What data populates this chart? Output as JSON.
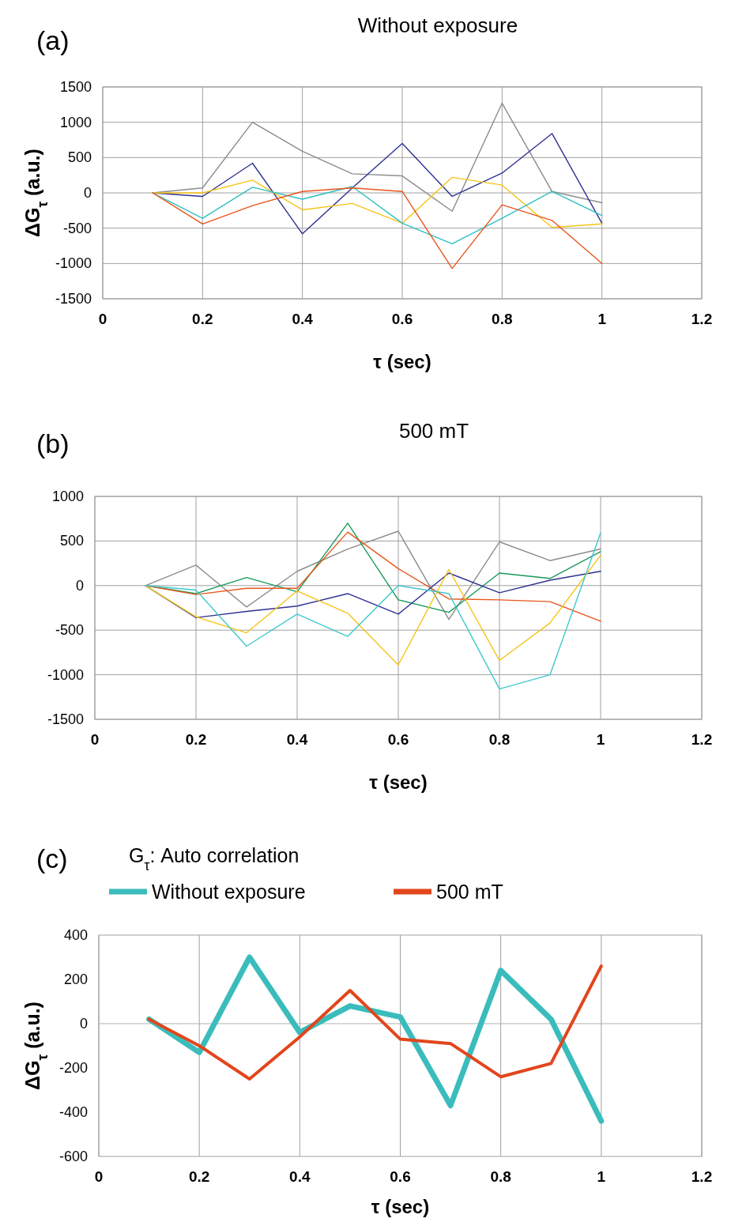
{
  "chart_data": [
    {
      "type": "line",
      "title": "Without exposure",
      "annotations": [
        "(a)"
      ],
      "xlabel": "τ (sec)",
      "ylabel": "ΔG$_{τ}$ (a.u.)",
      "x": [
        0.1,
        0.2,
        0.3,
        0.4,
        0.5,
        0.6,
        0.7,
        0.8,
        0.9,
        1.0
      ],
      "xlim": [
        0,
        1.2
      ],
      "xticks": [
        0,
        0.2,
        0.4,
        0.6,
        0.8,
        1,
        1.2
      ],
      "ylim": [
        -1500,
        1500
      ],
      "yticks": [
        -1500,
        -1000,
        -500,
        0,
        500,
        1000,
        1500
      ],
      "grid": true,
      "legend": false,
      "marker": "none",
      "line_style": "solid",
      "series": [
        {
          "color": "#8c8c8c",
          "values": [
            0,
            70,
            1000,
            590,
            270,
            240,
            -260,
            1270,
            20,
            -140
          ]
        },
        {
          "color": "#2e3192",
          "values": [
            0,
            -50,
            420,
            -580,
            70,
            700,
            -50,
            280,
            840,
            -430
          ]
        },
        {
          "color": "#f5c518",
          "values": [
            0,
            0,
            180,
            -240,
            -150,
            -430,
            220,
            110,
            -490,
            -440
          ]
        },
        {
          "color": "#2ebfc4",
          "values": [
            0,
            -360,
            80,
            -90,
            90,
            -430,
            -720,
            -360,
            20,
            -320
          ]
        },
        {
          "color": "#e8561c",
          "values": [
            0,
            -440,
            -180,
            20,
            70,
            20,
            -1070,
            -170,
            -390,
            -1000
          ]
        }
      ]
    },
    {
      "type": "line",
      "title": "500 mT",
      "annotations": [
        "(b)"
      ],
      "xlabel": "τ (sec)",
      "x": [
        0.1,
        0.2,
        0.3,
        0.4,
        0.5,
        0.6,
        0.7,
        0.8,
        0.9,
        1.0
      ],
      "xlim": [
        0,
        1.2
      ],
      "xticks": [
        0,
        0.2,
        0.4,
        0.6,
        0.8,
        1,
        1.2
      ],
      "ylim": [
        -1500,
        1000
      ],
      "yticks": [
        -1500,
        -1000,
        -500,
        0,
        500,
        1000
      ],
      "grid": true,
      "legend": false,
      "marker": "none",
      "line_style": "solid",
      "series": [
        {
          "color": "#8c8c8c",
          "values": [
            0,
            230,
            -240,
            160,
            410,
            610,
            -380,
            490,
            280,
            410
          ]
        },
        {
          "color": "#1a9a5a",
          "values": [
            0,
            -90,
            90,
            -70,
            700,
            -160,
            -300,
            140,
            80,
            380
          ]
        },
        {
          "color": "#e8561c",
          "values": [
            0,
            -100,
            -30,
            -30,
            600,
            190,
            -150,
            -160,
            -180,
            -400
          ]
        },
        {
          "color": "#2e3192",
          "values": [
            0,
            -360,
            -290,
            -230,
            -90,
            -320,
            140,
            -80,
            60,
            160
          ]
        },
        {
          "color": "#f5c518",
          "values": [
            0,
            -350,
            -530,
            -60,
            -310,
            -890,
            180,
            -840,
            -420,
            340
          ]
        },
        {
          "color": "#3fc8cc",
          "values": [
            0,
            -50,
            -680,
            -320,
            -570,
            0,
            -90,
            -1160,
            -1000,
            590
          ]
        }
      ]
    },
    {
      "type": "line",
      "subtitle": "G$_{τ}$: Auto correlation",
      "annotations": [
        "(c)"
      ],
      "xlabel": "τ (sec)",
      "ylabel": "ΔG$_{τ}$ (a.u.)",
      "x": [
        0.1,
        0.2,
        0.3,
        0.4,
        0.5,
        0.6,
        0.7,
        0.8,
        0.9,
        1.0
      ],
      "xlim": [
        0,
        1.2
      ],
      "xticks": [
        0,
        0.2,
        0.4,
        0.6,
        0.8,
        1,
        1.2
      ],
      "ylim": [
        -600,
        400
      ],
      "yticks": [
        -600,
        -400,
        -200,
        0,
        200,
        400
      ],
      "grid": "x",
      "legend": "top",
      "marker": "none",
      "line_style": "solid",
      "ref_lines": [
        {
          "axis": "y",
          "value": 0,
          "color": "#b0b0b0"
        }
      ],
      "series": [
        {
          "name": "Without exposure",
          "color": "#3bbcbc",
          "values": [
            20,
            -130,
            300,
            -40,
            80,
            30,
            -370,
            240,
            20,
            -440
          ]
        },
        {
          "name": "500 mT",
          "color": "#e2461c",
          "values": [
            20,
            -100,
            -250,
            -60,
            150,
            -70,
            -90,
            -240,
            -180,
            260
          ]
        }
      ]
    }
  ]
}
